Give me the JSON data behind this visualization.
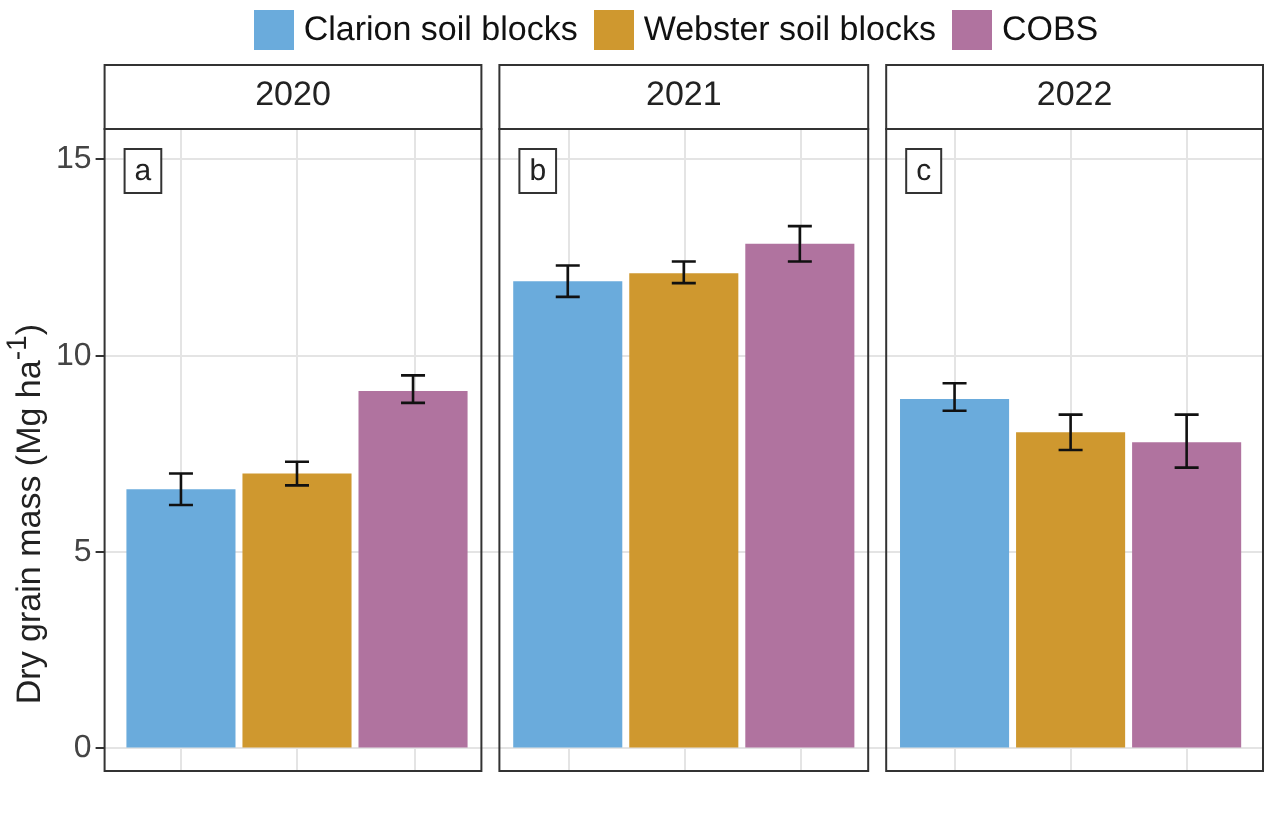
{
  "chart_data": {
    "type": "bar",
    "ylabel": "Dry grain mass (Mg ha$^{-1}$)",
    "annotations": [
      "a",
      "b",
      "c"
    ],
    "categories": [
      "2020",
      "2021",
      "2022"
    ],
    "ylim": [
      -0.6,
      15.8
    ],
    "yticks": [
      0,
      5,
      10,
      15
    ],
    "grid": true,
    "legend": "top",
    "series": [
      {
        "name": "Clarion soil blocks",
        "color": "#6aabdc",
        "values": [
          6.6,
          11.9,
          8.9
        ],
        "errors": [
          [
            6.2,
            7.0
          ],
          [
            11.5,
            12.3
          ],
          [
            8.6,
            9.3
          ]
        ]
      },
      {
        "name": "Webster soil blocks",
        "color": "#cf982f",
        "values": [
          7.0,
          12.1,
          8.05
        ],
        "errors": [
          [
            6.7,
            7.3
          ],
          [
            11.85,
            12.4
          ],
          [
            7.6,
            8.5
          ]
        ]
      },
      {
        "name": "COBS",
        "color": "#b0739f",
        "values": [
          9.1,
          12.85,
          7.8
        ],
        "errors": [
          [
            8.8,
            9.5
          ],
          [
            12.4,
            13.3
          ],
          [
            7.15,
            8.5
          ]
        ]
      }
    ]
  }
}
